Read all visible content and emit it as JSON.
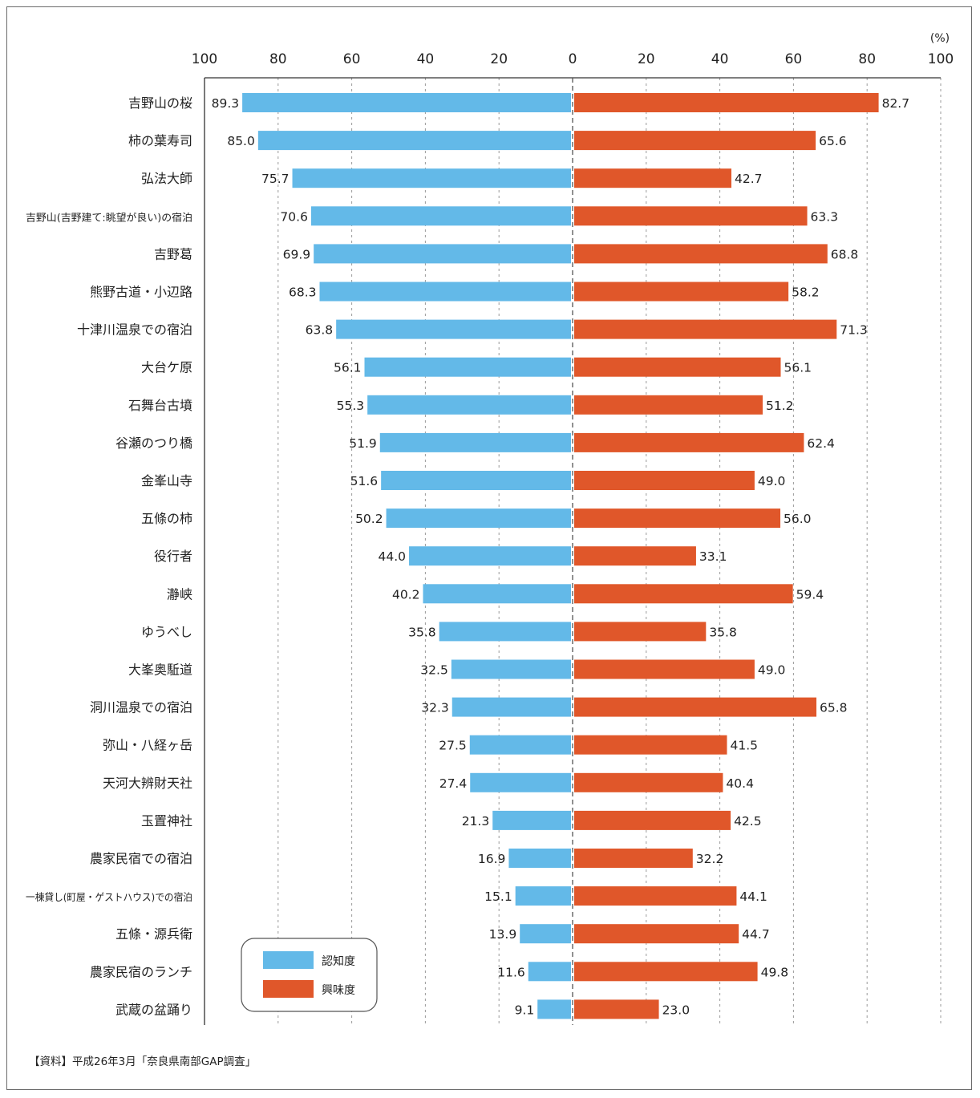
{
  "source_note": "【資料】平成26年3月「奈良県南部GAP調査」",
  "colors": {
    "awareness": "#63b9e8",
    "interest": "#e0572a"
  },
  "chart_data": {
    "type": "bar",
    "orientation": "horizontal-diverging",
    "unit": "(%)",
    "xlim": [
      0,
      100
    ],
    "ticks": [
      100,
      80,
      60,
      40,
      20,
      0,
      20,
      40,
      60,
      80,
      100
    ],
    "categories": [
      "吉野山の桜",
      "柿の葉寿司",
      "弘法大師",
      "吉野山(吉野建て:眺望が良い)の宿泊",
      "吉野葛",
      "熊野古道・小辺路",
      "十津川温泉での宿泊",
      "大台ケ原",
      "石舞台古墳",
      "谷瀬のつり橋",
      "金峯山寺",
      "五條の柿",
      "役行者",
      "瀞峡",
      "ゆうべし",
      "大峯奥駈道",
      "洞川温泉での宿泊",
      "弥山・八経ヶ岳",
      "天河大辨財天社",
      "玉置神社",
      "農家民宿での宿泊",
      "一棟貸し(町屋・ゲストハウス)での宿泊",
      "五條・源兵衛",
      "農家民宿のランチ",
      "武蔵の盆踊り"
    ],
    "series": [
      {
        "name": "認知度",
        "side": "left",
        "values": [
          89.3,
          85.0,
          75.7,
          70.6,
          69.9,
          68.3,
          63.8,
          56.1,
          55.3,
          51.9,
          51.6,
          50.2,
          44.0,
          40.2,
          35.8,
          32.5,
          32.3,
          27.5,
          27.4,
          21.3,
          16.9,
          15.1,
          13.9,
          11.6,
          9.1
        ]
      },
      {
        "name": "興味度",
        "side": "right",
        "values": [
          82.7,
          65.6,
          42.7,
          63.3,
          68.8,
          58.2,
          71.3,
          56.1,
          51.2,
          62.4,
          49.0,
          56.0,
          33.1,
          59.4,
          35.8,
          49.0,
          65.8,
          41.5,
          40.4,
          42.5,
          32.2,
          44.1,
          44.7,
          49.8,
          23.0
        ]
      }
    ],
    "grid": true,
    "legend": {
      "placement": "bottom-left",
      "entries": [
        "認知度",
        "興味度"
      ]
    }
  }
}
